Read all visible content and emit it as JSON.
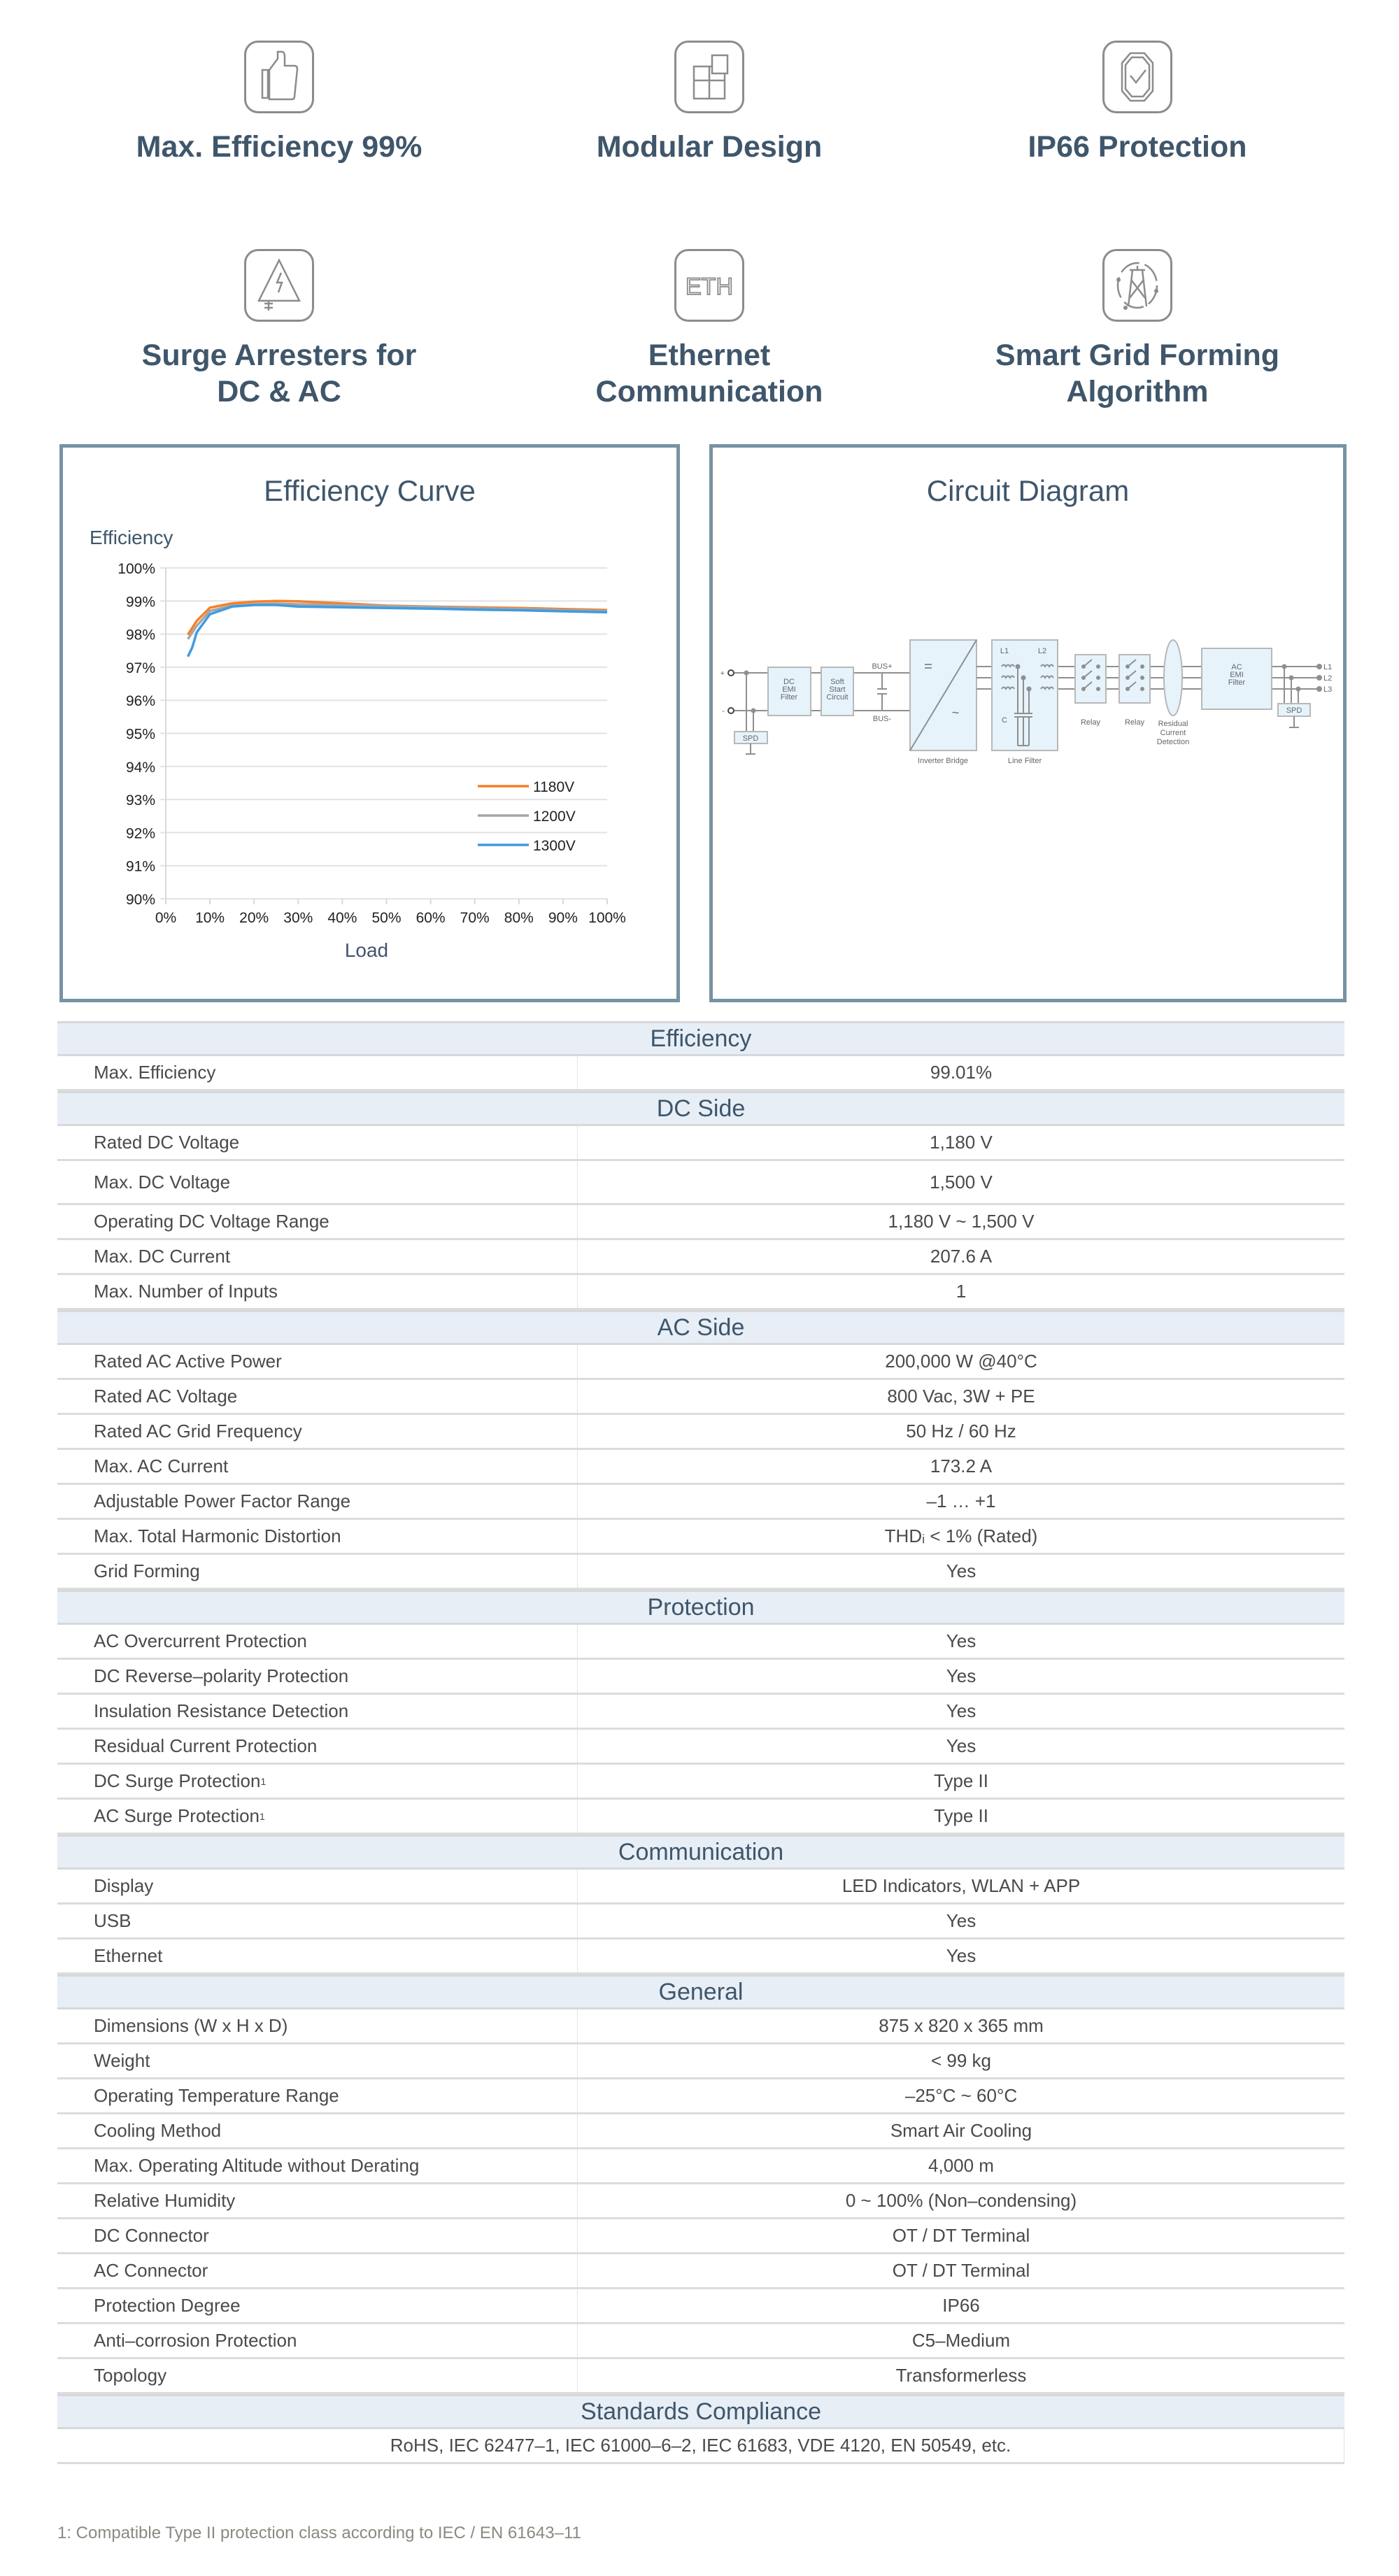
{
  "features": [
    {
      "title": "Max. Efficiency 99%",
      "icon": "thumbs-up-icon"
    },
    {
      "title": "Modular Design",
      "icon": "modular-blocks-icon"
    },
    {
      "title": "IP66 Protection",
      "icon": "shield-check-icon"
    },
    {
      "title": "Surge Arresters for DC & AC",
      "line1": "Surge Arresters for",
      "line2": "DC & AC",
      "icon": "surge-warning-icon"
    },
    {
      "title": "Ethernet Communication",
      "line1": "Ethernet",
      "line2": "Communication",
      "icon": "eth-icon"
    },
    {
      "title": "Smart Grid Forming Algorithm",
      "line1": "Smart Grid Forming",
      "line2": "Algorithm",
      "icon": "grid-tower-icon"
    }
  ],
  "efficiency_panel": {
    "title": "Efficiency Curve"
  },
  "circuit_panel": {
    "title": "Circuit Diagram",
    "labels": {
      "dc_emi": [
        "DC",
        "EMI",
        "Filter"
      ],
      "soft_start": [
        "Soft",
        "Start",
        "Circuit"
      ],
      "bus_plus": "BUS+",
      "bus_minus": "BUS-",
      "inverter": "Inverter Bridge",
      "line_filter": "Line Filter",
      "l1": "L1",
      "l2": "L2",
      "c": "C",
      "relay": "Relay",
      "rcd": [
        "Residual",
        "Current",
        "Detection"
      ],
      "ac_emi": [
        "AC",
        "EMI",
        "Filter"
      ],
      "spd": "SPD",
      "plus": "+",
      "minus": "-",
      "out": [
        "L1",
        "L2",
        "L3"
      ]
    }
  },
  "chart_data": {
    "type": "line",
    "ylabel": "Efficiency",
    "xlabel": "Load",
    "xlim": [
      0,
      100
    ],
    "ylim": [
      90,
      100
    ],
    "x_ticks": [
      "0%",
      "10%",
      "20%",
      "30%",
      "40%",
      "50%",
      "60%",
      "70%",
      "80%",
      "90%",
      "100%"
    ],
    "y_ticks": [
      "90%",
      "91%",
      "92%",
      "93%",
      "94%",
      "95%",
      "96%",
      "97%",
      "98%",
      "99%",
      "100%"
    ],
    "grid": true,
    "legend": "bottom-right",
    "series": [
      {
        "name": "1180V",
        "color": "#f5802a",
        "x": [
          5,
          7,
          10,
          15,
          20,
          25,
          30,
          40,
          50,
          60,
          70,
          80,
          90,
          100
        ],
        "y": [
          97.98,
          98.4,
          98.8,
          98.93,
          98.98,
          99.0,
          98.99,
          98.93,
          98.86,
          98.83,
          98.81,
          98.79,
          98.76,
          98.73
        ]
      },
      {
        "name": "1200V",
        "color": "#a5a5a5",
        "x": [
          5,
          7,
          10,
          15,
          20,
          25,
          30,
          40,
          50,
          60,
          70,
          80,
          90,
          100
        ],
        "y": [
          97.85,
          98.25,
          98.7,
          98.86,
          98.9,
          98.92,
          98.9,
          98.88,
          98.85,
          98.82,
          98.79,
          98.76,
          98.73,
          98.7
        ]
      },
      {
        "name": "1300V",
        "color": "#3f9be0",
        "x": [
          5,
          6,
          7,
          10,
          15,
          20,
          25,
          30,
          40,
          50,
          60,
          70,
          80,
          90,
          100
        ],
        "y": [
          97.32,
          97.6,
          98.05,
          98.6,
          98.83,
          98.88,
          98.88,
          98.83,
          98.81,
          98.79,
          98.77,
          98.74,
          98.72,
          98.69,
          98.66
        ]
      }
    ]
  },
  "spec_sections": [
    {
      "title": "Efficiency",
      "rows": [
        [
          "Max. Efficiency",
          "99.01%"
        ]
      ]
    },
    {
      "title": "DC Side",
      "rows": [
        [
          "Rated DC Voltage",
          "1,180 V"
        ],
        [
          "Max. DC Voltage",
          "1,500 V"
        ],
        [
          "Operating DC Voltage Range",
          "1,180 V ~ 1,500 V"
        ],
        [
          "Max. DC Current",
          "207.6 A"
        ],
        [
          "Max. Number of Inputs",
          "1"
        ]
      ]
    },
    {
      "title": "AC Side",
      "rows": [
        [
          "Rated AC Active Power",
          "200,000 W @40°C"
        ],
        [
          "Rated AC Voltage",
          "800 Vac, 3W + PE"
        ],
        [
          "Rated AC Grid Frequency",
          "50 Hz / 60 Hz"
        ],
        [
          "Max. AC Current",
          "173.2 A"
        ],
        [
          "Adjustable Power Factor Range",
          "–1 … +1"
        ],
        [
          "Max. Total Harmonic Distortion",
          "THDᵢ < 1% (Rated)"
        ],
        [
          "Grid Forming",
          "Yes"
        ]
      ]
    },
    {
      "title": "Protection",
      "rows": [
        [
          "AC Overcurrent Protection",
          "Yes"
        ],
        [
          "DC Reverse–polarity Protection",
          "Yes"
        ],
        [
          "Insulation Resistance Detection",
          "Yes"
        ],
        [
          "Residual Current Protection",
          "Yes"
        ],
        [
          "DC Surge Protection",
          "Type II",
          "1"
        ],
        [
          "AC Surge Protection",
          "Type II",
          "1"
        ]
      ]
    },
    {
      "title": "Communication",
      "rows": [
        [
          "Display",
          "LED Indicators, WLAN + APP"
        ],
        [
          "USB",
          "Yes"
        ],
        [
          "Ethernet",
          "Yes"
        ]
      ]
    },
    {
      "title": "General",
      "rows": [
        [
          "Dimensions (W x H x D)",
          "875 x 820 x 365 mm"
        ],
        [
          "Weight",
          "< 99 kg"
        ],
        [
          "Operating Temperature Range",
          "–25°C ~ 60°C"
        ],
        [
          "Cooling Method",
          "Smart Air Cooling"
        ],
        [
          "Max. Operating Altitude without Derating",
          "4,000 m"
        ],
        [
          "Relative Humidity",
          "0 ~ 100% (Non–condensing)"
        ],
        [
          "DC Connector",
          "OT / DT Terminal"
        ],
        [
          "AC Connector",
          "OT / DT Terminal"
        ],
        [
          "Protection Degree",
          "IP66"
        ],
        [
          "Anti–corrosion Protection",
          "C5–Medium"
        ],
        [
          "Topology",
          "Transformerless"
        ]
      ]
    },
    {
      "title": "Standards Compliance",
      "full": "RoHS, IEC 62477–1, IEC 61000–6–2, IEC 61683, VDE 4120, EN 50549, etc."
    }
  ],
  "footnote": "1: Compatible Type II protection class according to IEC / EN 61643–11"
}
